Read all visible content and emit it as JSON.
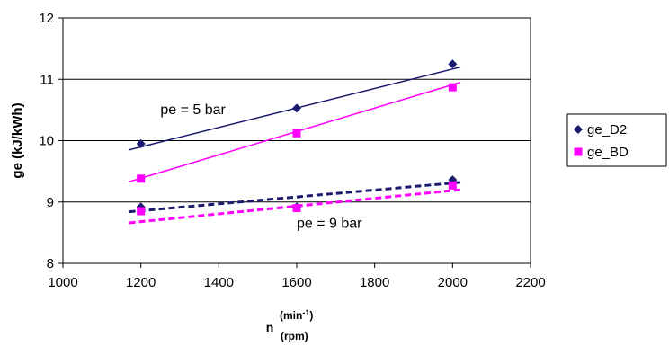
{
  "chart_data": {
    "type": "scatter",
    "ylabel": "ge (kJ/kWh)",
    "xlabel": {
      "main": "n",
      "unit_top": "(min",
      "unit_top_sup": "-1",
      "unit_top_close": ")",
      "unit_bottom": "(rpm)"
    },
    "xlim": [
      1000,
      2200
    ],
    "ylim": [
      8,
      12
    ],
    "xticks": [
      1000,
      1200,
      1400,
      1600,
      1800,
      2000,
      2200
    ],
    "yticks": [
      8,
      9,
      10,
      11,
      12
    ],
    "y_gridlines": [
      9,
      10,
      11
    ],
    "legend_position": "right",
    "series": [
      {
        "name": "ge_D2",
        "marker": "diamond",
        "color": "#1a1a6e",
        "x": [
          1200,
          1600,
          2000,
          1200,
          1600,
          2000
        ],
        "y": [
          9.95,
          10.53,
          11.25,
          8.92,
          8.92,
          9.36
        ]
      },
      {
        "name": "ge_BD",
        "marker": "square",
        "color": "#ff00ff",
        "x": [
          1200,
          1600,
          2000,
          1200,
          1600,
          2000
        ],
        "y": [
          9.38,
          10.12,
          10.87,
          8.85,
          8.9,
          9.27
        ]
      }
    ],
    "trendlines": [
      {
        "series": "ge_D2",
        "group": "pe = 5 bar",
        "style": "solid",
        "color": "#1a1a6e",
        "x": [
          1170,
          2020
        ],
        "y": [
          9.85,
          11.2
        ]
      },
      {
        "series": "ge_BD",
        "group": "pe = 5 bar",
        "style": "solid",
        "color": "#ff00ff",
        "x": [
          1170,
          2020
        ],
        "y": [
          9.33,
          10.95
        ]
      },
      {
        "series": "ge_D2",
        "group": "pe = 9 bar",
        "style": "dashed",
        "color": "#1a1a6e",
        "x": [
          1170,
          2020
        ],
        "y": [
          8.84,
          9.32
        ]
      },
      {
        "series": "ge_BD",
        "group": "pe = 9 bar",
        "style": "dashed",
        "color": "#ff00ff",
        "x": [
          1170,
          2020
        ],
        "y": [
          8.66,
          9.2
        ]
      }
    ],
    "annotations": [
      {
        "text": "pe = 5 bar",
        "x": 1250,
        "y": 10.43
      },
      {
        "text": "pe = 9 bar",
        "x": 1600,
        "y": 8.58
      }
    ]
  }
}
